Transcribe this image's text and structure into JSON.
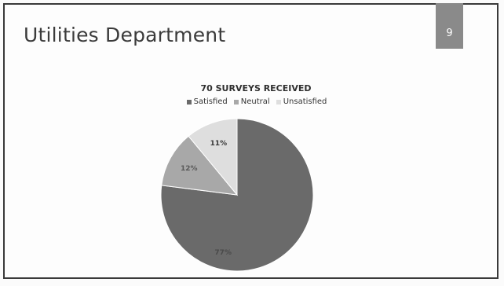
{
  "slide": {
    "title": "Utilities Department",
    "page_number": "9"
  },
  "chart_data": {
    "type": "pie",
    "title": "70 SURVEYS RECEIVED",
    "categories": [
      "Satisfied",
      "Neutral",
      "Unsatisfied"
    ],
    "values": [
      77,
      12,
      11
    ],
    "labels": [
      "77%",
      "12%",
      "11%"
    ],
    "colors": [
      "#6a6a6a",
      "#a8a8a8",
      "#dedede"
    ],
    "label_colors": [
      "#4a4a4a",
      "#5a5a5a",
      "#3a3a3a"
    ],
    "legend_position": "top"
  }
}
